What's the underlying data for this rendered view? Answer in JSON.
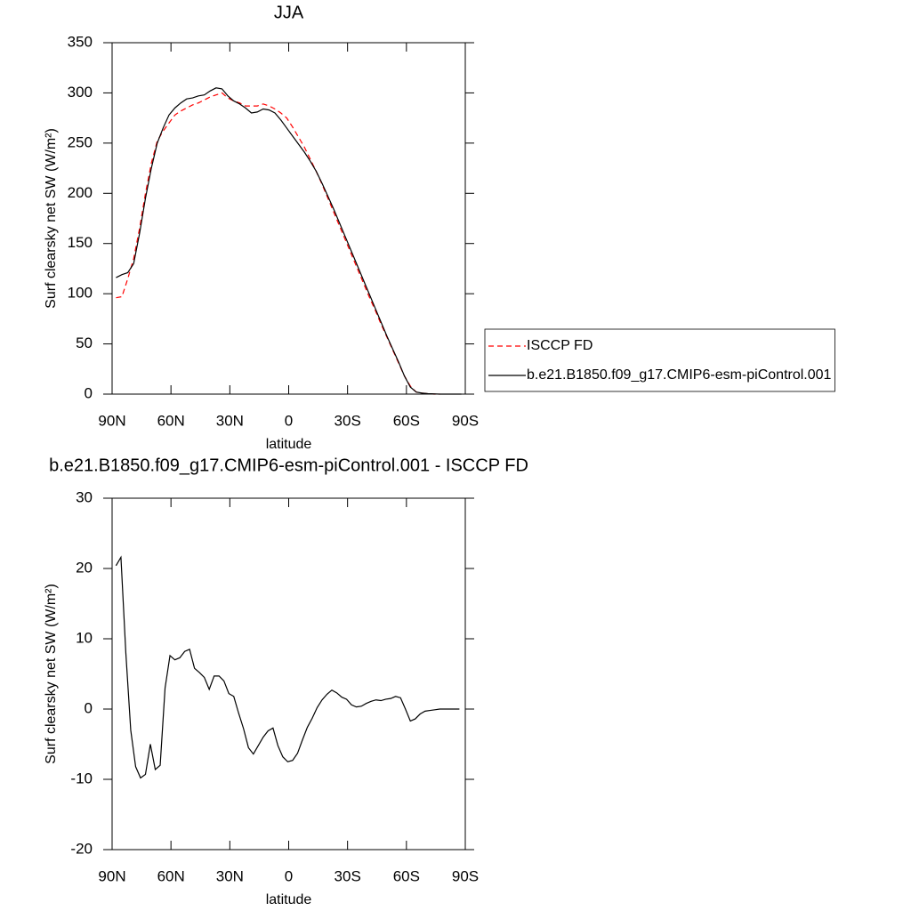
{
  "chart_data": [
    {
      "type": "line",
      "title": "JJA",
      "xlabel": "latitude",
      "ylabel": "Surf clearsky net SW (W/m²)",
      "x": [
        88,
        85,
        82,
        79,
        76,
        73,
        70,
        67,
        64,
        61,
        58,
        55,
        52,
        49,
        46,
        43,
        40,
        37,
        34,
        31,
        28,
        25,
        22,
        19,
        16,
        13,
        10,
        7,
        4,
        1,
        -2,
        -5,
        -8,
        -11,
        -14,
        -17,
        -20,
        -23,
        -26,
        -29,
        -32,
        -35,
        -38,
        -41,
        -44,
        -47,
        -50,
        -53,
        -56,
        -59,
        -62,
        -65,
        -68,
        -71,
        -74,
        -77,
        -80,
        -83,
        -86,
        -88
      ],
      "series": [
        {
          "name": "ISCCP FD",
          "color": "#ff0000",
          "line_style": "dashed",
          "values": [
            96,
            97,
            115,
            135,
            165,
            200,
            230,
            252,
            262,
            270,
            278,
            282,
            285,
            288,
            290,
            293,
            296,
            298,
            300,
            295,
            292,
            290,
            287,
            287,
            287,
            289,
            287,
            284,
            280,
            275,
            266,
            256,
            246,
            234,
            222,
            209,
            195,
            181,
            167,
            153,
            139,
            125,
            111,
            97,
            84,
            70,
            57,
            44,
            31,
            18,
            8,
            2,
            1,
            0.5,
            0,
            0,
            null,
            null,
            null,
            null
          ]
        },
        {
          "name": "b.e21.B1850.f09_g17.CMIP6-esm-piControl.001",
          "color": "#000000",
          "line_style": "solid",
          "values": [
            116,
            119,
            121,
            130,
            160,
            195,
            225,
            250,
            265,
            278,
            285,
            290,
            294,
            295,
            297,
            298,
            302,
            305,
            304,
            297,
            292,
            289,
            285,
            280,
            281,
            284,
            283,
            280,
            273,
            265,
            257,
            249,
            241,
            232,
            222,
            210,
            197,
            184,
            170,
            156,
            142,
            128,
            114,
            100,
            86,
            72,
            58,
            45,
            32,
            18,
            7,
            2,
            1,
            0.5,
            0.2,
            0,
            0,
            0,
            0,
            0
          ]
        }
      ],
      "xlim": [
        90,
        -90
      ],
      "xticks": [
        {
          "value": 90,
          "label": "90N"
        },
        {
          "value": 60,
          "label": "60N"
        },
        {
          "value": 30,
          "label": "30N"
        },
        0,
        {
          "value": -30,
          "label": "30S"
        },
        {
          "value": -60,
          "label": "60S"
        },
        {
          "value": -90,
          "label": "90S"
        }
      ],
      "ylim": [
        0,
        350
      ],
      "yticks": [
        0,
        50,
        100,
        150,
        200,
        250,
        300,
        350
      ],
      "legend": "right"
    },
    {
      "type": "line",
      "title": "b.e21.B1850.f09_g17.CMIP6-esm-piControl.001 - ISCCP FD",
      "xlabel": "latitude",
      "ylabel": "Surf clearsky net SW (W/m²)",
      "x": [
        88,
        85.5,
        83,
        80.5,
        78,
        75.5,
        73,
        70.5,
        68,
        65.5,
        63,
        60.5,
        58,
        55.5,
        53,
        50.5,
        48,
        45.5,
        43,
        40.5,
        38,
        35.5,
        33,
        30.5,
        28,
        25.5,
        23,
        20.5,
        18,
        15.5,
        13,
        10.5,
        8,
        5.5,
        3,
        0.5,
        -2,
        -4.5,
        -7,
        -9.5,
        -12,
        -14.5,
        -17,
        -19.5,
        -22,
        -24.5,
        -27,
        -29.5,
        -32,
        -34.5,
        -37,
        -39.5,
        -42,
        -44.5,
        -47,
        -49.5,
        -52,
        -54.5,
        -57,
        -59.5,
        -62,
        -64.5,
        -67,
        -69.5,
        -72,
        -74.5,
        -77,
        -79.5,
        -82,
        -84.5,
        -87
      ],
      "series": [
        {
          "color": "#000000",
          "line_style": "solid",
          "values": [
            20.4,
            21.6,
            8,
            -3,
            -8.2,
            -9.8,
            -9.3,
            -5,
            -8.6,
            -8,
            3,
            7.6,
            7,
            7.3,
            8.2,
            8.5,
            5.8,
            5.2,
            4.5,
            2.8,
            4.7,
            4.7,
            4,
            2.2,
            1.8,
            -0.6,
            -2.8,
            -5.5,
            -6.4,
            -5.2,
            -4,
            -3.1,
            -2.7,
            -5.2,
            -6.8,
            -7.5,
            -7.3,
            -6.3,
            -4.4,
            -2.6,
            -1.3,
            0.2,
            1.3,
            2.1,
            2.7,
            2.3,
            1.7,
            1.4,
            0.6,
            0.3,
            0.4,
            0.8,
            1.1,
            1.3,
            1.2,
            1.4,
            1.5,
            1.8,
            1.6,
            0,
            -1.7,
            -1.4,
            -0.7,
            -0.3,
            -0.2,
            -0.1,
            0,
            0,
            0,
            0,
            0
          ]
        }
      ],
      "xlim": [
        90,
        -90
      ],
      "xticks": [
        {
          "value": 90,
          "label": "90N"
        },
        {
          "value": 60,
          "label": "60N"
        },
        {
          "value": 30,
          "label": "30N"
        },
        0,
        {
          "value": -30,
          "label": "30S"
        },
        {
          "value": -60,
          "label": "60S"
        },
        {
          "value": -90,
          "label": "90S"
        }
      ],
      "ylim": [
        -20,
        30
      ],
      "yticks": [
        -20,
        -10,
        0,
        10,
        20,
        30
      ]
    }
  ]
}
